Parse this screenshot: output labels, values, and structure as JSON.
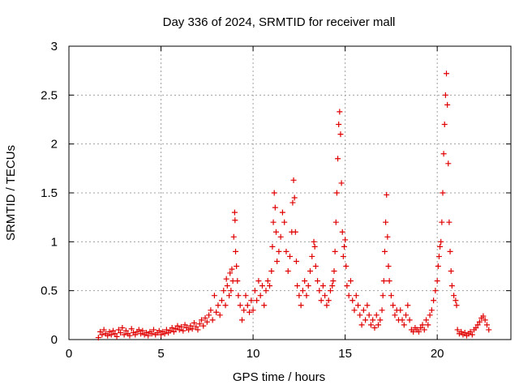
{
  "chart_data": {
    "type": "scatter",
    "title": "Day 336 of 2024, SRMTID for receiver mall",
    "xlabel": "GPS time / hours",
    "ylabel": "SRMTID / TECUs",
    "xlim": [
      0,
      24
    ],
    "ylim": [
      0,
      3
    ],
    "x_ticks": [
      0,
      5,
      10,
      15,
      20
    ],
    "x_tick_labels": [
      "0",
      "5",
      "10",
      "15",
      "20"
    ],
    "y_ticks": [
      0,
      0.5,
      1,
      1.5,
      2,
      2.5,
      3
    ],
    "y_tick_labels": [
      "0",
      "0.5",
      "1",
      "1.5",
      "2",
      "2.5",
      "3"
    ],
    "grid": true,
    "marker": "+",
    "colors": {
      "marker": "#e00000",
      "grid": "#a0a0a0",
      "axis": "#000000"
    },
    "series": [
      {
        "name": "SRMTID",
        "points": [
          [
            1.6,
            0.02
          ],
          [
            1.7,
            0.08
          ],
          [
            1.8,
            0.05
          ],
          [
            1.9,
            0.1
          ],
          [
            2.0,
            0.06
          ],
          [
            2.1,
            0.04
          ],
          [
            2.2,
            0.08
          ],
          [
            2.3,
            0.05
          ],
          [
            2.4,
            0.09
          ],
          [
            2.5,
            0.06
          ],
          [
            2.6,
            0.03
          ],
          [
            2.7,
            0.1
          ],
          [
            2.8,
            0.07
          ],
          [
            2.9,
            0.12
          ],
          [
            3.0,
            0.05
          ],
          [
            3.1,
            0.09
          ],
          [
            3.2,
            0.06
          ],
          [
            3.3,
            0.04
          ],
          [
            3.4,
            0.11
          ],
          [
            3.5,
            0.07
          ],
          [
            3.6,
            0.05
          ],
          [
            3.7,
            0.08
          ],
          [
            3.8,
            0.1
          ],
          [
            3.9,
            0.06
          ],
          [
            4.0,
            0.09
          ],
          [
            4.1,
            0.05
          ],
          [
            4.2,
            0.07
          ],
          [
            4.3,
            0.04
          ],
          [
            4.4,
            0.08
          ],
          [
            4.5,
            0.06
          ],
          [
            4.6,
            0.1
          ],
          [
            4.7,
            0.05
          ],
          [
            4.8,
            0.07
          ],
          [
            4.9,
            0.09
          ],
          [
            5.0,
            0.05
          ],
          [
            5.1,
            0.08
          ],
          [
            5.2,
            0.06
          ],
          [
            5.3,
            0.1
          ],
          [
            5.4,
            0.07
          ],
          [
            5.5,
            0.09
          ],
          [
            5.6,
            0.12
          ],
          [
            5.7,
            0.08
          ],
          [
            5.8,
            0.11
          ],
          [
            5.9,
            0.14
          ],
          [
            6.0,
            0.1
          ],
          [
            6.1,
            0.13
          ],
          [
            6.2,
            0.09
          ],
          [
            6.3,
            0.15
          ],
          [
            6.4,
            0.12
          ],
          [
            6.5,
            0.1
          ],
          [
            6.6,
            0.14
          ],
          [
            6.7,
            0.11
          ],
          [
            6.8,
            0.17
          ],
          [
            6.9,
            0.13
          ],
          [
            7.0,
            0.1
          ],
          [
            7.1,
            0.16
          ],
          [
            7.2,
            0.2
          ],
          [
            7.3,
            0.14
          ],
          [
            7.4,
            0.22
          ],
          [
            7.5,
            0.18
          ],
          [
            7.6,
            0.25
          ],
          [
            7.7,
            0.3
          ],
          [
            7.8,
            0.2
          ],
          [
            7.9,
            0.45
          ],
          [
            8.0,
            0.28
          ],
          [
            8.1,
            0.35
          ],
          [
            8.2,
            0.25
          ],
          [
            8.3,
            0.4
          ],
          [
            8.4,
            0.5
          ],
          [
            8.5,
            0.35
          ],
          [
            8.55,
            0.62
          ],
          [
            8.6,
            0.55
          ],
          [
            8.7,
            0.45
          ],
          [
            8.75,
            0.68
          ],
          [
            8.8,
            0.5
          ],
          [
            8.85,
            0.72
          ],
          [
            8.9,
            0.6
          ],
          [
            8.95,
            1.05
          ],
          [
            9.0,
            1.3
          ],
          [
            9.02,
            1.22
          ],
          [
            9.05,
            0.9
          ],
          [
            9.1,
            0.75
          ],
          [
            9.15,
            0.6
          ],
          [
            9.2,
            0.45
          ],
          [
            9.3,
            0.35
          ],
          [
            9.4,
            0.2
          ],
          [
            9.5,
            0.3
          ],
          [
            9.6,
            0.45
          ],
          [
            9.7,
            0.35
          ],
          [
            9.8,
            0.28
          ],
          [
            9.9,
            0.4
          ],
          [
            10.0,
            0.3
          ],
          [
            10.1,
            0.5
          ],
          [
            10.2,
            0.4
          ],
          [
            10.3,
            0.6
          ],
          [
            10.4,
            0.45
          ],
          [
            10.5,
            0.55
          ],
          [
            10.6,
            0.35
          ],
          [
            10.7,
            0.5
          ],
          [
            10.8,
            0.6
          ],
          [
            10.9,
            0.55
          ],
          [
            11.0,
            0.7
          ],
          [
            11.05,
            0.95
          ],
          [
            11.1,
            1.2
          ],
          [
            11.15,
            1.5
          ],
          [
            11.2,
            1.35
          ],
          [
            11.25,
            1.1
          ],
          [
            11.3,
            0.8
          ],
          [
            11.4,
            0.9
          ],
          [
            11.5,
            1.05
          ],
          [
            11.6,
            1.3
          ],
          [
            11.7,
            1.2
          ],
          [
            11.8,
            0.9
          ],
          [
            11.9,
            0.7
          ],
          [
            12.0,
            0.85
          ],
          [
            12.1,
            1.1
          ],
          [
            12.15,
            1.4
          ],
          [
            12.2,
            1.63
          ],
          [
            12.25,
            1.45
          ],
          [
            12.3,
            1.1
          ],
          [
            12.35,
            0.8
          ],
          [
            12.4,
            0.55
          ],
          [
            12.5,
            0.45
          ],
          [
            12.6,
            0.35
          ],
          [
            12.7,
            0.5
          ],
          [
            12.8,
            0.6
          ],
          [
            12.9,
            0.45
          ],
          [
            13.0,
            0.55
          ],
          [
            13.1,
            0.7
          ],
          [
            13.2,
            0.85
          ],
          [
            13.3,
            1.0
          ],
          [
            13.35,
            0.95
          ],
          [
            13.4,
            0.75
          ],
          [
            13.5,
            0.6
          ],
          [
            13.6,
            0.5
          ],
          [
            13.7,
            0.4
          ],
          [
            13.8,
            0.55
          ],
          [
            13.9,
            0.45
          ],
          [
            14.0,
            0.35
          ],
          [
            14.1,
            0.4
          ],
          [
            14.2,
            0.5
          ],
          [
            14.3,
            0.55
          ],
          [
            14.35,
            0.6
          ],
          [
            14.4,
            0.7
          ],
          [
            14.45,
            0.9
          ],
          [
            14.5,
            1.2
          ],
          [
            14.55,
            1.5
          ],
          [
            14.6,
            1.85
          ],
          [
            14.65,
            2.2
          ],
          [
            14.7,
            2.33
          ],
          [
            14.75,
            2.1
          ],
          [
            14.8,
            1.6
          ],
          [
            14.85,
            1.1
          ],
          [
            14.9,
            0.85
          ],
          [
            14.95,
            0.95
          ],
          [
            15.0,
            1.02
          ],
          [
            15.05,
            0.75
          ],
          [
            15.1,
            0.55
          ],
          [
            15.2,
            0.45
          ],
          [
            15.3,
            0.6
          ],
          [
            15.4,
            0.4
          ],
          [
            15.5,
            0.3
          ],
          [
            15.6,
            0.45
          ],
          [
            15.7,
            0.35
          ],
          [
            15.8,
            0.25
          ],
          [
            15.9,
            0.15
          ],
          [
            16.0,
            0.3
          ],
          [
            16.1,
            0.2
          ],
          [
            16.2,
            0.35
          ],
          [
            16.3,
            0.25
          ],
          [
            16.4,
            0.15
          ],
          [
            16.5,
            0.2
          ],
          [
            16.6,
            0.12
          ],
          [
            16.7,
            0.25
          ],
          [
            16.8,
            0.15
          ],
          [
            16.9,
            0.2
          ],
          [
            17.0,
            0.3
          ],
          [
            17.05,
            0.45
          ],
          [
            17.1,
            0.6
          ],
          [
            17.15,
            0.9
          ],
          [
            17.2,
            1.2
          ],
          [
            17.25,
            1.48
          ],
          [
            17.3,
            1.05
          ],
          [
            17.35,
            0.75
          ],
          [
            17.4,
            0.6
          ],
          [
            17.5,
            0.45
          ],
          [
            17.6,
            0.35
          ],
          [
            17.7,
            0.25
          ],
          [
            17.8,
            0.3
          ],
          [
            17.9,
            0.2
          ],
          [
            18.0,
            0.3
          ],
          [
            18.1,
            0.2
          ],
          [
            18.2,
            0.15
          ],
          [
            18.3,
            0.25
          ],
          [
            18.4,
            0.35
          ],
          [
            18.5,
            0.2
          ],
          [
            18.6,
            0.1
          ],
          [
            18.7,
            0.08
          ],
          [
            18.8,
            0.12
          ],
          [
            18.9,
            0.1
          ],
          [
            19.0,
            0.08
          ],
          [
            19.1,
            0.12
          ],
          [
            19.2,
            0.15
          ],
          [
            19.3,
            0.1
          ],
          [
            19.4,
            0.2
          ],
          [
            19.5,
            0.15
          ],
          [
            19.6,
            0.25
          ],
          [
            19.7,
            0.3
          ],
          [
            19.8,
            0.4
          ],
          [
            19.9,
            0.5
          ],
          [
            20.0,
            0.6
          ],
          [
            20.05,
            0.75
          ],
          [
            20.1,
            0.85
          ],
          [
            20.15,
            0.95
          ],
          [
            20.2,
            1.0
          ],
          [
            20.25,
            1.2
          ],
          [
            20.3,
            1.5
          ],
          [
            20.35,
            1.9
          ],
          [
            20.4,
            2.2
          ],
          [
            20.45,
            2.5
          ],
          [
            20.5,
            2.72
          ],
          [
            20.55,
            2.4
          ],
          [
            20.6,
            1.8
          ],
          [
            20.65,
            1.2
          ],
          [
            20.7,
            0.9
          ],
          [
            20.75,
            0.7
          ],
          [
            20.8,
            0.55
          ],
          [
            20.9,
            0.45
          ],
          [
            21.0,
            0.4
          ],
          [
            21.05,
            0.35
          ],
          [
            21.1,
            0.1
          ],
          [
            21.2,
            0.06
          ],
          [
            21.3,
            0.08
          ],
          [
            21.4,
            0.05
          ],
          [
            21.5,
            0.07
          ],
          [
            21.6,
            0.04
          ],
          [
            21.7,
            0.06
          ],
          [
            21.8,
            0.08
          ],
          [
            21.9,
            0.05
          ],
          [
            22.0,
            0.1
          ],
          [
            22.1,
            0.12
          ],
          [
            22.2,
            0.15
          ],
          [
            22.3,
            0.18
          ],
          [
            22.4,
            0.22
          ],
          [
            22.5,
            0.24
          ],
          [
            22.6,
            0.2
          ],
          [
            22.7,
            0.15
          ],
          [
            22.8,
            0.1
          ]
        ]
      }
    ]
  }
}
